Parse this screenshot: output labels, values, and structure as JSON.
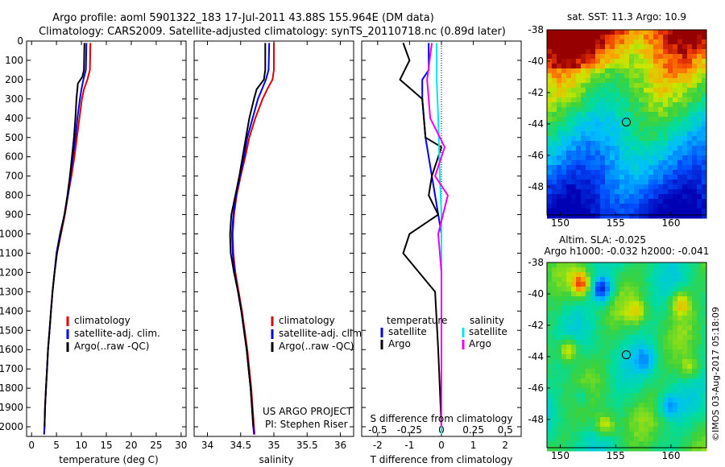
{
  "header": {
    "title_line1": "Argo profile: aoml 5901322_183 17-Jul-2011 43.88S 155.964E (DM data)",
    "title_line2": "Climatology: CARS2009. Satellite-adjusted climatology: synTS_20110718.nc (0.89d later)"
  },
  "side_text": "©IMOS 03-Aug-2017 05:18:09",
  "colors": {
    "red": "#e00000",
    "blue": "#0000ee",
    "black": "#000000",
    "cyan": "#00e5ee",
    "magenta": "#ee00ee"
  },
  "chart_data": [
    {
      "id": "temperature",
      "type": "line",
      "xlabel": "temperature (deg C)",
      "xlim": [
        -1,
        31
      ],
      "xticks": [
        0,
        5,
        10,
        15,
        20,
        25,
        30
      ],
      "ylim": [
        0,
        2050
      ],
      "ylim_reversed": true,
      "yticks": [
        0,
        100,
        200,
        300,
        400,
        500,
        600,
        700,
        800,
        900,
        1000,
        1100,
        1200,
        1300,
        1400,
        1500,
        1600,
        1700,
        1800,
        1900,
        2000
      ],
      "legend": [
        "climatology",
        "satellite-adj. clim.",
        "Argo(..raw -QC)"
      ],
      "legend_position": "lower-left",
      "series": [
        {
          "name": "climatology",
          "color": "red",
          "points": [
            [
              11.8,
              10
            ],
            [
              11.7,
              150
            ],
            [
              11.2,
              200
            ],
            [
              10.5,
              250
            ],
            [
              10.1,
              300
            ],
            [
              9.6,
              400
            ],
            [
              9.1,
              500
            ],
            [
              8.6,
              600
            ],
            [
              8.0,
              700
            ],
            [
              7.3,
              800
            ],
            [
              6.7,
              900
            ],
            [
              5.9,
              1000
            ],
            [
              5.1,
              1100
            ],
            [
              4.6,
              1200
            ],
            [
              4.2,
              1300
            ],
            [
              3.9,
              1400
            ],
            [
              3.6,
              1500
            ],
            [
              3.3,
              1600
            ],
            [
              3.1,
              1700
            ],
            [
              2.9,
              1800
            ],
            [
              2.7,
              1900
            ],
            [
              2.6,
              2000
            ],
            [
              2.5,
              2040
            ]
          ]
        },
        {
          "name": "satellite-adj. clim.",
          "color": "blue",
          "points": [
            [
              11.0,
              10
            ],
            [
              10.9,
              150
            ],
            [
              10.4,
              200
            ],
            [
              10.0,
              250
            ],
            [
              9.7,
              300
            ],
            [
              9.2,
              400
            ],
            [
              8.8,
              500
            ],
            [
              8.3,
              600
            ],
            [
              7.8,
              700
            ],
            [
              7.3,
              800
            ],
            [
              6.6,
              900
            ],
            [
              5.7,
              1000
            ],
            [
              5.0,
              1100
            ],
            [
              4.6,
              1200
            ],
            [
              4.2,
              1300
            ],
            [
              3.9,
              1400
            ],
            [
              3.6,
              1500
            ],
            [
              3.3,
              1600
            ],
            [
              3.1,
              1700
            ],
            [
              2.9,
              1800
            ],
            [
              2.7,
              1900
            ],
            [
              2.6,
              2000
            ],
            [
              2.5,
              2040
            ]
          ]
        },
        {
          "name": "Argo(..raw -QC)",
          "color": "black",
          "points": [
            [
              10.6,
              10
            ],
            [
              10.5,
              150
            ],
            [
              10.2,
              185
            ],
            [
              9.3,
              220
            ],
            [
              9.0,
              300
            ],
            [
              8.8,
              400
            ],
            [
              8.5,
              500
            ],
            [
              8.1,
              600
            ],
            [
              7.7,
              700
            ],
            [
              7.2,
              800
            ],
            [
              6.6,
              900
            ],
            [
              5.8,
              1000
            ],
            [
              5.1,
              1100
            ],
            [
              4.6,
              1200
            ],
            [
              4.2,
              1300
            ],
            [
              3.9,
              1400
            ],
            [
              3.6,
              1500
            ],
            [
              3.3,
              1600
            ],
            [
              3.1,
              1700
            ],
            [
              2.9,
              1800
            ],
            [
              2.7,
              1900
            ],
            [
              2.6,
              2000
            ]
          ]
        }
      ]
    },
    {
      "id": "salinity",
      "type": "line",
      "xlabel": "salinity",
      "xlim": [
        33.8,
        36.2
      ],
      "xticks": [
        34,
        34.5,
        35,
        35.5,
        36
      ],
      "ylim": [
        0,
        2050
      ],
      "ylim_reversed": true,
      "legend": [
        "climatology",
        "satellite-adj. clim.",
        "Argo(..raw -QC)"
      ],
      "legend_position": "lower-left",
      "annotation": [
        "US ARGO PROJECT",
        "PI: Stephen Riser"
      ],
      "series": [
        {
          "name": "climatology",
          "color": "red",
          "points": [
            [
              35.0,
              10
            ],
            [
              35.0,
              150
            ],
            [
              34.98,
              200
            ],
            [
              34.9,
              250
            ],
            [
              34.83,
              300
            ],
            [
              34.72,
              400
            ],
            [
              34.63,
              500
            ],
            [
              34.57,
              600
            ],
            [
              34.5,
              700
            ],
            [
              34.44,
              800
            ],
            [
              34.4,
              900
            ],
            [
              34.38,
              1000
            ],
            [
              34.39,
              1100
            ],
            [
              34.42,
              1200
            ],
            [
              34.47,
              1300
            ],
            [
              34.52,
              1400
            ],
            [
              34.56,
              1500
            ],
            [
              34.6,
              1600
            ],
            [
              34.63,
              1700
            ],
            [
              34.66,
              1800
            ],
            [
              34.68,
              1900
            ],
            [
              34.7,
              2000
            ],
            [
              34.71,
              2040
            ]
          ]
        },
        {
          "name": "satellite-adj. clim.",
          "color": "blue",
          "points": [
            [
              34.93,
              10
            ],
            [
              34.92,
              150
            ],
            [
              34.88,
              200
            ],
            [
              34.82,
              250
            ],
            [
              34.76,
              300
            ],
            [
              34.68,
              400
            ],
            [
              34.6,
              500
            ],
            [
              34.55,
              600
            ],
            [
              34.49,
              700
            ],
            [
              34.43,
              800
            ],
            [
              34.39,
              900
            ],
            [
              34.37,
              1000
            ],
            [
              34.38,
              1100
            ],
            [
              34.41,
              1200
            ],
            [
              34.46,
              1300
            ],
            [
              34.51,
              1400
            ],
            [
              34.55,
              1500
            ],
            [
              34.59,
              1600
            ],
            [
              34.62,
              1700
            ],
            [
              34.65,
              1800
            ],
            [
              34.67,
              1900
            ],
            [
              34.69,
              2000
            ],
            [
              34.7,
              2040
            ]
          ]
        },
        {
          "name": "Argo(..raw -QC)",
          "color": "black",
          "points": [
            [
              34.87,
              10
            ],
            [
              34.87,
              150
            ],
            [
              34.85,
              200
            ],
            [
              34.74,
              250
            ],
            [
              34.7,
              300
            ],
            [
              34.63,
              400
            ],
            [
              34.58,
              500
            ],
            [
              34.53,
              600
            ],
            [
              34.48,
              700
            ],
            [
              34.42,
              800
            ],
            [
              34.36,
              900
            ],
            [
              34.34,
              1000
            ],
            [
              34.35,
              1100
            ],
            [
              34.4,
              1200
            ],
            [
              34.46,
              1300
            ],
            [
              34.51,
              1400
            ],
            [
              34.55,
              1500
            ],
            [
              34.59,
              1600
            ],
            [
              34.62,
              1700
            ],
            [
              34.65,
              1800
            ],
            [
              34.67,
              1900
            ],
            [
              34.69,
              2000
            ]
          ]
        }
      ]
    },
    {
      "id": "difference",
      "type": "line",
      "xlabel": "T difference from climatology",
      "xlabel_top": "S difference from climatology",
      "xlim": [
        -2.5,
        2.5
      ],
      "xticks": [
        -2,
        -1,
        0,
        1,
        2
      ],
      "xticks_top": [
        "-0.5",
        "-0.25",
        "0",
        "0.25",
        "0.5"
      ],
      "ylim": [
        0,
        2050
      ],
      "ylim_reversed": true,
      "legend_headers": [
        "temperature",
        "salinity"
      ],
      "legend_temperature": [
        "satellite",
        "Argo"
      ],
      "legend_salinity": [
        "satellite",
        "Argo"
      ],
      "series": [
        {
          "name": "temperature satellite",
          "color": "blue",
          "points": [
            [
              -0.4,
              10
            ],
            [
              -0.4,
              150
            ],
            [
              -0.6,
              200
            ],
            [
              -0.6,
              300
            ],
            [
              -0.5,
              500
            ],
            [
              -0.3,
              700
            ],
            [
              -0.2,
              800
            ],
            [
              0,
              1000
            ],
            [
              0,
              1500
            ],
            [
              0,
              2040
            ]
          ]
        },
        {
          "name": "temperature Argo",
          "color": "black",
          "points": [
            [
              -1.2,
              10
            ],
            [
              -1.0,
              100
            ],
            [
              -1.3,
              200
            ],
            [
              -0.6,
              300
            ],
            [
              -0.5,
              500
            ],
            [
              0,
              550
            ],
            [
              -0.3,
              700
            ],
            [
              -0.4,
              800
            ],
            [
              -0.1,
              900
            ],
            [
              -1.0,
              1000
            ],
            [
              -1.2,
              1100
            ],
            [
              -0.2,
              1300
            ],
            [
              -0.1,
              1600
            ],
            [
              0,
              2000
            ]
          ]
        },
        {
          "name": "salinity satellite",
          "color": "cyan",
          "points": [
            [
              -0.15,
              10
            ],
            [
              -0.15,
              200
            ],
            [
              -0.1,
              400
            ],
            [
              -0.05,
              700
            ],
            [
              0,
              900
            ],
            [
              0,
              1500
            ],
            [
              0,
              2040
            ]
          ]
        },
        {
          "name": "salinity Argo",
          "color": "magenta",
          "points": [
            [
              -0.3,
              10
            ],
            [
              -0.45,
              200
            ],
            [
              -0.35,
              400
            ],
            [
              0.1,
              550
            ],
            [
              -0.2,
              700
            ],
            [
              0.2,
              800
            ],
            [
              -0.1,
              1000
            ],
            [
              0,
              1200
            ],
            [
              0,
              2000
            ]
          ]
        }
      ]
    },
    {
      "id": "sst_map",
      "type": "heatmap",
      "title": "sat. SST: 11.3 Argo: 10.9",
      "xticks": [
        150,
        155,
        160
      ],
      "yticks": [
        -38,
        -40,
        -42,
        -44,
        -46,
        -48
      ],
      "marker": {
        "lon": 155.96,
        "lat": -43.88
      }
    },
    {
      "id": "sla_map",
      "type": "heatmap",
      "title_line1": "Altim. SLA: -0.025",
      "title_line2": "Argo h1000: -0.032 h2000: -0.041",
      "xticks": [
        150,
        155,
        160
      ],
      "yticks": [
        -38,
        -40,
        -42,
        -44,
        -46,
        -48
      ],
      "marker": {
        "lon": 155.96,
        "lat": -43.88
      }
    }
  ]
}
